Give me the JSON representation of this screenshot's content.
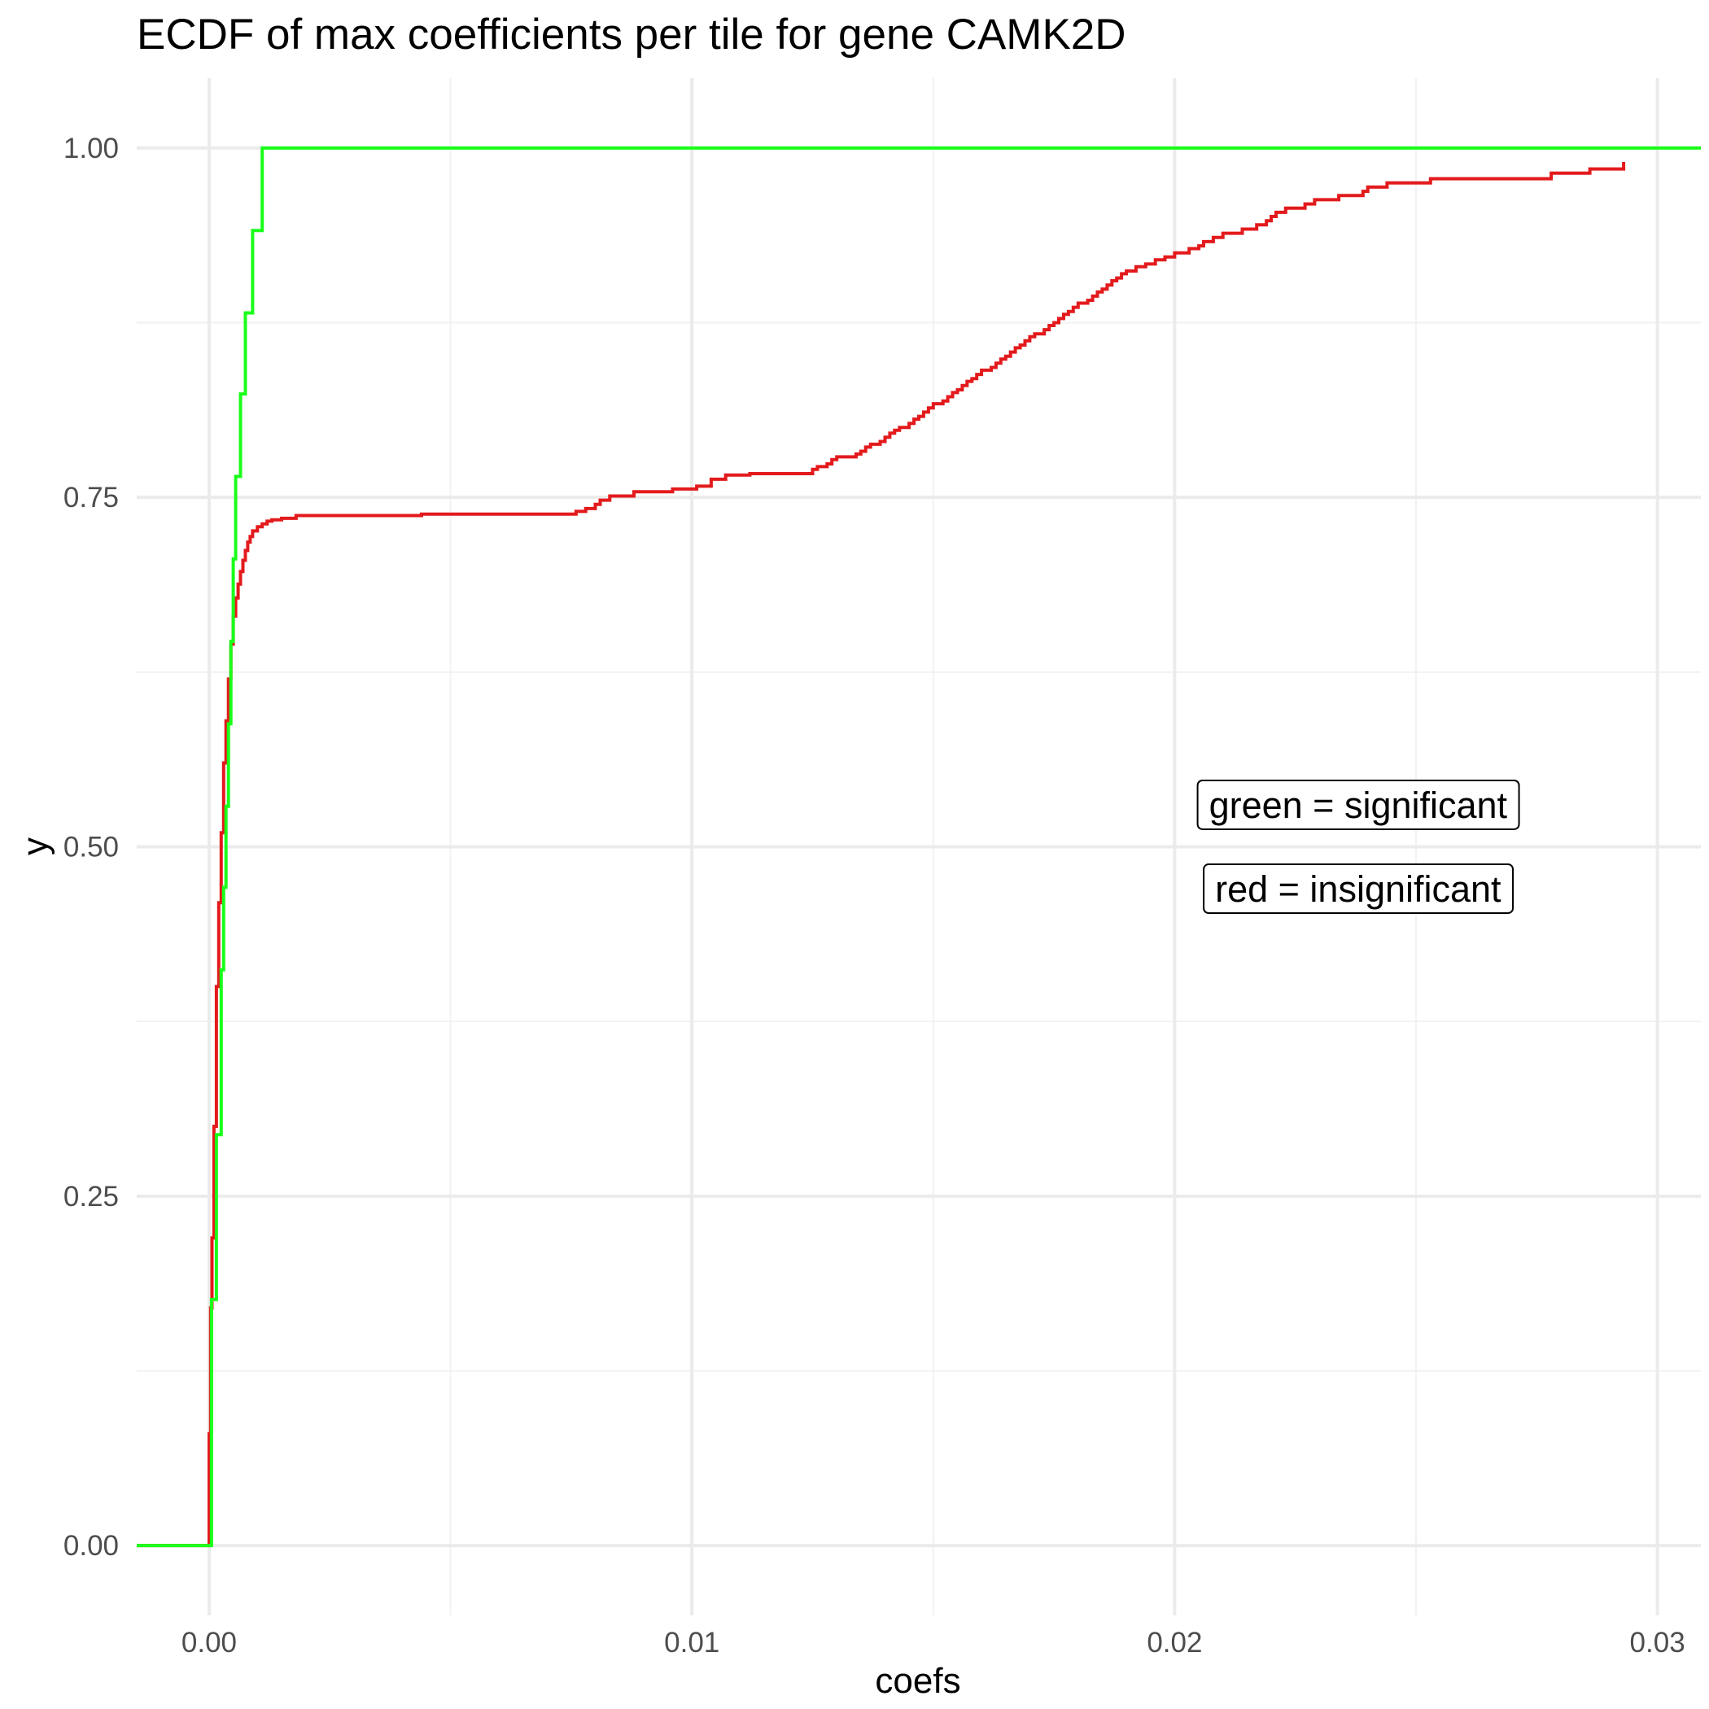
{
  "chart_data": {
    "type": "line",
    "step": true,
    "title": "ECDF of max coefficients per tile for gene CAMK2D",
    "xlabel": "coefs",
    "ylabel": "y",
    "xlim": [
      -0.0015,
      0.0309
    ],
    "ylim": [
      -0.05,
      1.05
    ],
    "x_ticks": [
      {
        "value": 0.0,
        "label": "0.00"
      },
      {
        "value": 0.01,
        "label": "0.01"
      },
      {
        "value": 0.02,
        "label": "0.02"
      },
      {
        "value": 0.03,
        "label": "0.03"
      }
    ],
    "y_ticks": [
      {
        "value": 0.0,
        "label": "0.00"
      },
      {
        "value": 0.25,
        "label": "0.25"
      },
      {
        "value": 0.5,
        "label": "0.50"
      },
      {
        "value": 0.75,
        "label": "0.75"
      },
      {
        "value": 1.0,
        "label": "1.00"
      }
    ],
    "grid": true,
    "series": [
      {
        "color": "#e31a1c",
        "x": [
          -0.0015,
          0.0,
          3e-05,
          6e-05,
          0.0001,
          0.00015,
          0.0002,
          0.00025,
          0.0003,
          0.00035,
          0.0004,
          0.00045,
          0.0005,
          0.00055,
          0.0006,
          0.00065,
          0.0007,
          0.00075,
          0.0008,
          0.00085,
          0.0009,
          0.001,
          0.0011,
          0.0012,
          0.0013,
          0.0015,
          0.0018,
          0.0044,
          0.0076,
          0.0078,
          0.008,
          0.0081,
          0.0083,
          0.0088,
          0.0096,
          0.0101,
          0.0104,
          0.0107,
          0.0112,
          0.0125,
          0.0126,
          0.0128,
          0.0129,
          0.013,
          0.0134,
          0.0135,
          0.0136,
          0.0137,
          0.0139,
          0.014,
          0.0141,
          0.0142,
          0.0143,
          0.0145,
          0.0146,
          0.0147,
          0.0148,
          0.0149,
          0.015,
          0.0152,
          0.0153,
          0.0154,
          0.0155,
          0.0156,
          0.0157,
          0.0158,
          0.0159,
          0.016,
          0.0162,
          0.0163,
          0.0164,
          0.0165,
          0.0166,
          0.0167,
          0.0168,
          0.0169,
          0.017,
          0.0171,
          0.0173,
          0.0174,
          0.0175,
          0.0176,
          0.0177,
          0.0178,
          0.0179,
          0.018,
          0.0182,
          0.0183,
          0.0184,
          0.0185,
          0.0186,
          0.0187,
          0.0188,
          0.0189,
          0.019,
          0.0192,
          0.0194,
          0.0196,
          0.0198,
          0.02,
          0.0203,
          0.0205,
          0.0206,
          0.0208,
          0.021,
          0.0214,
          0.0217,
          0.0219,
          0.022,
          0.0221,
          0.0223,
          0.0227,
          0.0229,
          0.0234,
          0.0239,
          0.024,
          0.0244,
          0.0253,
          0.0278,
          0.0286,
          0.0293
        ],
        "y": [
          0.0,
          0.08,
          0.17,
          0.22,
          0.3,
          0.4,
          0.46,
          0.51,
          0.56,
          0.59,
          0.62,
          0.645,
          0.665,
          0.678,
          0.688,
          0.697,
          0.705,
          0.712,
          0.718,
          0.722,
          0.726,
          0.729,
          0.731,
          0.733,
          0.734,
          0.735,
          0.737,
          0.738,
          0.74,
          0.742,
          0.745,
          0.748,
          0.751,
          0.754,
          0.756,
          0.758,
          0.763,
          0.766,
          0.767,
          0.77,
          0.772,
          0.774,
          0.777,
          0.779,
          0.781,
          0.783,
          0.786,
          0.788,
          0.79,
          0.793,
          0.796,
          0.798,
          0.8,
          0.803,
          0.806,
          0.808,
          0.811,
          0.814,
          0.817,
          0.819,
          0.822,
          0.825,
          0.827,
          0.83,
          0.833,
          0.835,
          0.838,
          0.841,
          0.843,
          0.846,
          0.849,
          0.851,
          0.854,
          0.857,
          0.859,
          0.862,
          0.865,
          0.867,
          0.87,
          0.873,
          0.875,
          0.878,
          0.881,
          0.883,
          0.886,
          0.889,
          0.891,
          0.894,
          0.897,
          0.899,
          0.902,
          0.905,
          0.907,
          0.91,
          0.912,
          0.915,
          0.917,
          0.92,
          0.922,
          0.925,
          0.928,
          0.93,
          0.933,
          0.936,
          0.939,
          0.942,
          0.945,
          0.948,
          0.951,
          0.954,
          0.957,
          0.96,
          0.963,
          0.966,
          0.969,
          0.972,
          0.975,
          0.978,
          0.982,
          0.985,
          0.99
        ]
      },
      {
        "color": "#1aff1a",
        "x": [
          -0.0015,
          0.0,
          5e-05,
          0.00015,
          0.00025,
          0.0003,
          0.00035,
          0.0004,
          0.00045,
          0.0005,
          0.00055,
          0.00065,
          0.00075,
          0.0009,
          0.0011,
          0.0309
        ],
        "y": [
          0.0,
          0.0,
          0.176,
          0.294,
          0.412,
          0.471,
          0.529,
          0.588,
          0.647,
          0.706,
          0.765,
          0.824,
          0.882,
          0.941,
          1.0,
          1.0
        ]
      }
    ],
    "annotations": [
      {
        "text": "green = significant",
        "x": 0.0238,
        "y": 0.53
      },
      {
        "text": "red = insignificant",
        "x": 0.0238,
        "y": 0.47
      }
    ]
  }
}
